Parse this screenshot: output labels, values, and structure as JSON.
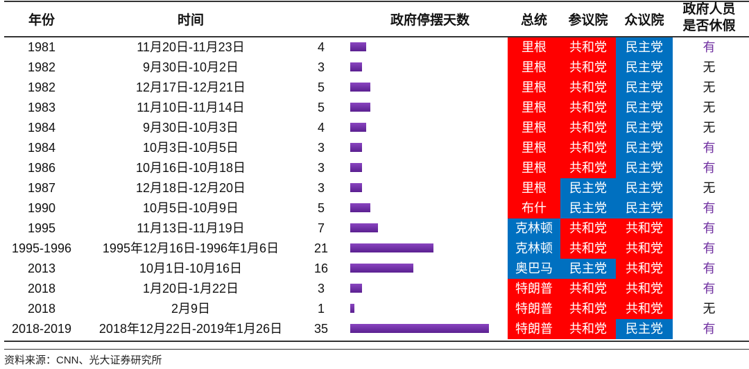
{
  "headers": {
    "year": "年份",
    "time": "时间",
    "days": "政府停摆天数",
    "president": "总统",
    "senate": "参议院",
    "house": "众议院",
    "holiday_l1": "政府人员",
    "holiday_l2": "是否休假"
  },
  "colors": {
    "republican": "#ff0000",
    "democrat": "#0070c0",
    "bar": "#7030a0",
    "holiday_yes": "#7030a0",
    "text": "#111111"
  },
  "chart_data": {
    "type": "table",
    "columns": [
      "年份",
      "时间",
      "政府停摆天数",
      "总统",
      "参议院",
      "众议院",
      "政府人员是否休假"
    ],
    "rows": [
      {
        "year": "1981",
        "time": "11月20日-11月23日",
        "days": 4,
        "president": "里根",
        "president_party": "R",
        "senate": "共和党",
        "house": "民主党",
        "holiday": "有"
      },
      {
        "year": "1982",
        "time": "9月30日-10月2日",
        "days": 3,
        "president": "里根",
        "president_party": "R",
        "senate": "共和党",
        "house": "民主党",
        "holiday": "无"
      },
      {
        "year": "1982",
        "time": "12月17日-12月21日",
        "days": 5,
        "president": "里根",
        "president_party": "R",
        "senate": "共和党",
        "house": "民主党",
        "holiday": "无"
      },
      {
        "year": "1983",
        "time": "11月10日-11月14日",
        "days": 5,
        "president": "里根",
        "president_party": "R",
        "senate": "共和党",
        "house": "民主党",
        "holiday": "无"
      },
      {
        "year": "1984",
        "time": "9月30日-10月3日",
        "days": 4,
        "president": "里根",
        "president_party": "R",
        "senate": "共和党",
        "house": "民主党",
        "holiday": "无"
      },
      {
        "year": "1984",
        "time": "10月3日-10月5日",
        "days": 3,
        "president": "里根",
        "president_party": "R",
        "senate": "共和党",
        "house": "民主党",
        "holiday": "有"
      },
      {
        "year": "1986",
        "time": "10月16日-10月18日",
        "days": 3,
        "president": "里根",
        "president_party": "R",
        "senate": "共和党",
        "house": "民主党",
        "holiday": "有"
      },
      {
        "year": "1987",
        "time": "12月18日-12月20日",
        "days": 3,
        "president": "里根",
        "president_party": "R",
        "senate": "民主党",
        "house": "民主党",
        "holiday": "无"
      },
      {
        "year": "1990",
        "time": "10月5日-10月9日",
        "days": 5,
        "president": "布什",
        "president_party": "R",
        "senate": "民主党",
        "house": "民主党",
        "holiday": "有"
      },
      {
        "year": "1995",
        "time": "11月13日-11月19日",
        "days": 7,
        "president": "克林顿",
        "president_party": "D",
        "senate": "共和党",
        "house": "共和党",
        "holiday": "有"
      },
      {
        "year": "1995-1996",
        "time": "1995年12月16日-1996年1月6日",
        "days": 21,
        "president": "克林顿",
        "president_party": "D",
        "senate": "共和党",
        "house": "共和党",
        "holiday": "有"
      },
      {
        "year": "2013",
        "time": "10月1日-10月16日",
        "days": 16,
        "president": "奥巴马",
        "president_party": "D",
        "senate": "民主党",
        "house": "共和党",
        "holiday": "有"
      },
      {
        "year": "2018",
        "time": "1月20日-1月22日",
        "days": 3,
        "president": "特朗普",
        "president_party": "R",
        "senate": "共和党",
        "house": "共和党",
        "holiday": "有"
      },
      {
        "year": "2018",
        "time": "2月9日",
        "days": 1,
        "president": "特朗普",
        "president_party": "R",
        "senate": "共和党",
        "house": "共和党",
        "holiday": "无"
      },
      {
        "year": "2018-2019",
        "time": "2018年12月22日-2019年1月26日",
        "days": 35,
        "president": "特朗普",
        "president_party": "R",
        "senate": "共和党",
        "house": "民主党",
        "holiday": "有"
      }
    ]
  },
  "source": "资料来源：CNN、光大证券研究所"
}
